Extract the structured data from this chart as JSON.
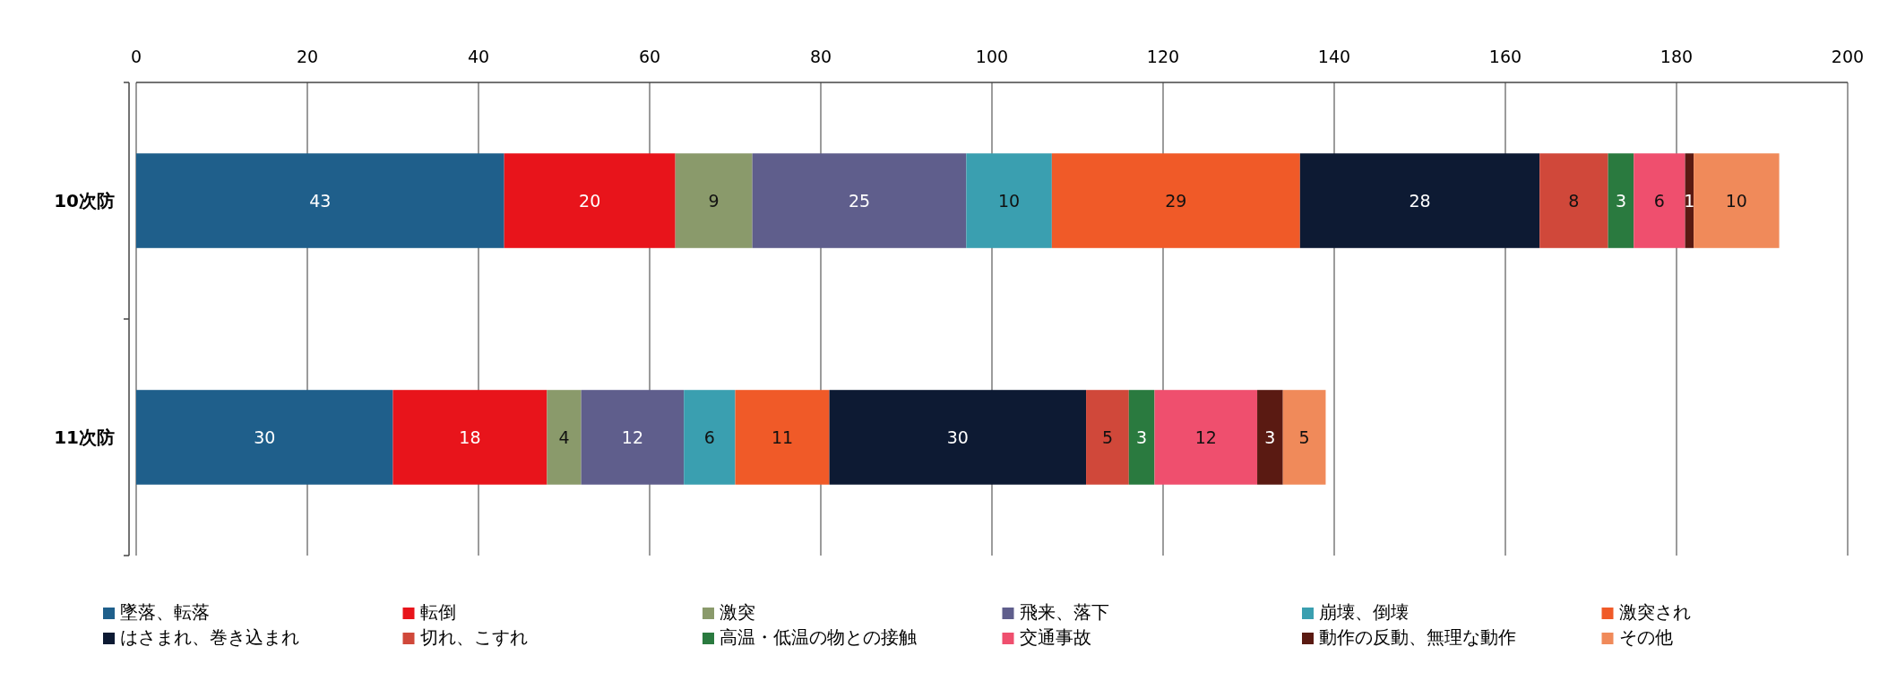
{
  "chart_data": {
    "type": "bar",
    "orientation": "horizontal",
    "stacked": true,
    "categories": [
      "10次防",
      "11次防"
    ],
    "xlim": [
      0,
      200
    ],
    "xticks": [
      0,
      20,
      40,
      60,
      80,
      100,
      120,
      140,
      160,
      180,
      200
    ],
    "grid": "x",
    "legend": "bottom",
    "data_labels": true,
    "series": [
      {
        "name": "墜落、転落",
        "color": "#1f5f8b",
        "values": [
          43,
          30
        ]
      },
      {
        "name": "転倒",
        "color": "#e8141b",
        "values": [
          20,
          18
        ]
      },
      {
        "name": "激突",
        "color": "#8a9a6b",
        "values": [
          9,
          4
        ]
      },
      {
        "name": "飛来、落下",
        "color": "#5f5e8c",
        "values": [
          25,
          12
        ]
      },
      {
        "name": "崩壊、倒壊",
        "color": "#3a9fb0",
        "values": [
          10,
          6
        ]
      },
      {
        "name": "激突され",
        "color": "#f05a28",
        "values": [
          29,
          11
        ]
      },
      {
        "name": "はさまれ、巻き込まれ",
        "color": "#0d1a33",
        "values": [
          28,
          30
        ]
      },
      {
        "name": "切れ、こすれ",
        "color": "#d0483a",
        "values": [
          8,
          5
        ]
      },
      {
        "name": "高温・低温の物との接触",
        "color": "#2a7a3f",
        "values": [
          3,
          3
        ]
      },
      {
        "name": "交通事故",
        "color": "#ef4f6e",
        "values": [
          6,
          12
        ]
      },
      {
        "name": "動作の反動、無理な動作",
        "color": "#5a1a12",
        "values": [
          1,
          3
        ]
      },
      {
        "name": "その他",
        "color": "#f08a5a",
        "values": [
          10,
          5
        ]
      }
    ]
  }
}
